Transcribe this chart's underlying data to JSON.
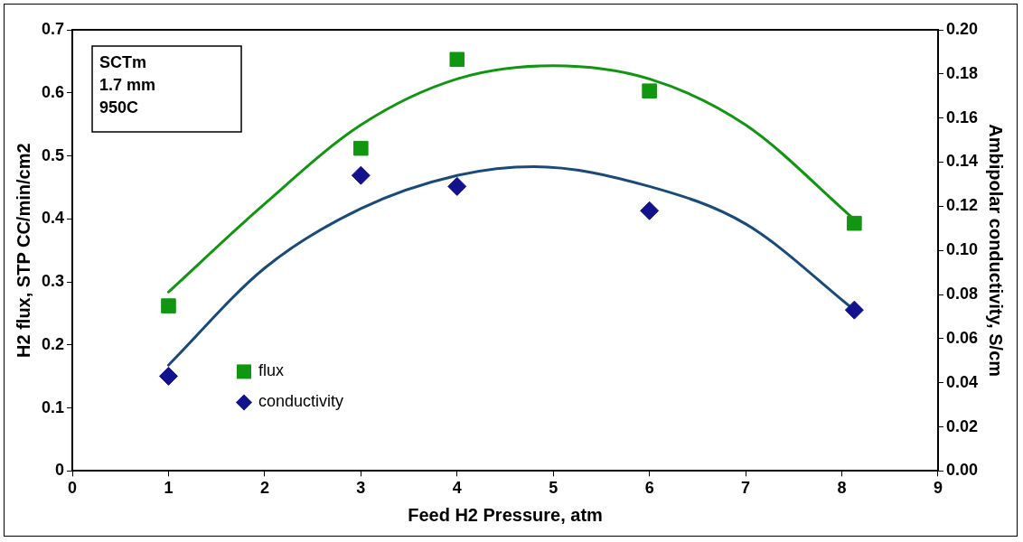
{
  "chart_data": {
    "type": "scatter",
    "xlabel": "Feed H2 Pressure, atm",
    "ylabel": "H2 flux, STP CC/min/cm2",
    "y2label": "Ambipolar conductivity, S/cm",
    "annotations": [
      "SCTm",
      "1.7 mm",
      "950C"
    ],
    "xlim": [
      0,
      9
    ],
    "xticks": [
      0,
      1,
      2,
      3,
      4,
      5,
      6,
      7,
      8,
      9
    ],
    "ylim": [
      0,
      0.7
    ],
    "yticks": [
      0,
      0.1,
      0.2,
      0.3,
      0.4,
      0.5,
      0.6,
      0.7
    ],
    "y2lim": [
      0,
      0.2
    ],
    "y2ticks": [
      {
        "value": 0,
        "label": "0.00"
      },
      {
        "value": 0.02,
        "label": "0.02"
      },
      {
        "value": 0.04,
        "label": "0.04"
      },
      {
        "value": 0.06,
        "label": "0.06"
      },
      {
        "value": 0.08,
        "label": "0.08"
      },
      {
        "value": 0.1,
        "label": "0.10"
      },
      {
        "value": 0.12,
        "label": "0.12"
      },
      {
        "value": 0.14,
        "label": "0.14"
      },
      {
        "value": 0.16,
        "label": "0.16"
      },
      {
        "value": 0.18,
        "label": "0.18"
      },
      {
        "value": 0.2,
        "label": "0.20"
      }
    ],
    "legend": "bottom left",
    "series": [
      {
        "name": "flux",
        "marker": "square",
        "color": "#119611",
        "x": [
          1,
          3,
          4,
          6,
          8.13
        ],
        "values": [
          0.262,
          0.512,
          0.653,
          0.603,
          0.393
        ]
      },
      {
        "name": "conductivity",
        "marker": "diamond",
        "axis": "y2",
        "color": "#12128c",
        "x": [
          1,
          3,
          4,
          6,
          8.13
        ],
        "values": [
          0.043,
          0.134,
          0.129,
          0.118,
          0.073
        ]
      },
      {
        "type": "line",
        "marker": "none",
        "color": "#119611",
        "x": [
          1,
          2,
          3,
          4,
          5,
          6,
          7,
          8.13
        ],
        "values": [
          0.284,
          0.424,
          0.549,
          0.622,
          0.643,
          0.622,
          0.549,
          0.399
        ]
      },
      {
        "type": "line",
        "marker": "none",
        "axis": "y2",
        "color": "#1a4a7a",
        "x": [
          1,
          2,
          3,
          4,
          4.8,
          6,
          7,
          8.13
        ],
        "values": [
          0.048,
          0.092,
          0.119,
          0.134,
          0.138,
          0.129,
          0.112,
          0.073
        ]
      }
    ]
  }
}
